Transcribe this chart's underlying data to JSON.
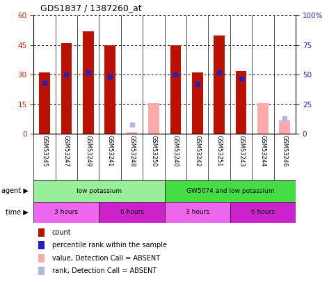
{
  "title": "GDS1837 / 1387260_at",
  "samples": [
    "GSM53245",
    "GSM53247",
    "GSM53249",
    "GSM53241",
    "GSM53248",
    "GSM53250",
    "GSM53240",
    "GSM53242",
    "GSM53251",
    "GSM53243",
    "GSM53244",
    "GSM53246"
  ],
  "count_values": [
    31,
    46,
    52,
    45,
    null,
    null,
    45,
    31,
    50,
    32,
    null,
    null
  ],
  "percentile_values": [
    26,
    30,
    31,
    29,
    null,
    null,
    30,
    25,
    31,
    28,
    null,
    null
  ],
  "absent_count": [
    null,
    null,
    null,
    null,
    1.0,
    15.5,
    null,
    null,
    null,
    null,
    15.5,
    7
  ],
  "absent_rank": [
    null,
    null,
    null,
    null,
    8,
    null,
    null,
    null,
    null,
    null,
    null,
    13
  ],
  "ylim_left": [
    0,
    60
  ],
  "ylim_right": [
    0,
    100
  ],
  "yticks_left": [
    0,
    15,
    30,
    45,
    60
  ],
  "yticks_right": [
    0,
    25,
    50,
    75,
    100
  ],
  "agent_groups": [
    {
      "label": "low potassium",
      "start": 0,
      "end": 6,
      "color": "#99EE99"
    },
    {
      "label": "GW5074 and low potassium",
      "start": 6,
      "end": 12,
      "color": "#44DD44"
    }
  ],
  "time_groups": [
    {
      "label": "3 hours",
      "start": 0,
      "end": 3,
      "color": "#EE66EE"
    },
    {
      "label": "6 hours",
      "start": 3,
      "end": 6,
      "color": "#CC22CC"
    },
    {
      "label": "3 hours",
      "start": 6,
      "end": 9,
      "color": "#EE66EE"
    },
    {
      "label": "6 hours",
      "start": 9,
      "end": 12,
      "color": "#CC22CC"
    }
  ],
  "count_color": "#BB1100",
  "percentile_color": "#2222BB",
  "absent_count_color": "#FFAAAA",
  "absent_rank_color": "#AABBDD",
  "bg_color": "#FFFFFF",
  "sample_header_color": "#CCCCCC",
  "tick_label_color_left": "#CC2200",
  "tick_label_color_right": "#2222BB",
  "legend_items": [
    {
      "label": "count",
      "color": "#BB1100"
    },
    {
      "label": "percentile rank within the sample",
      "color": "#2222BB"
    },
    {
      "label": "value, Detection Call = ABSENT",
      "color": "#FFAAAA"
    },
    {
      "label": "rank, Detection Call = ABSENT",
      "color": "#AABBDD"
    }
  ]
}
